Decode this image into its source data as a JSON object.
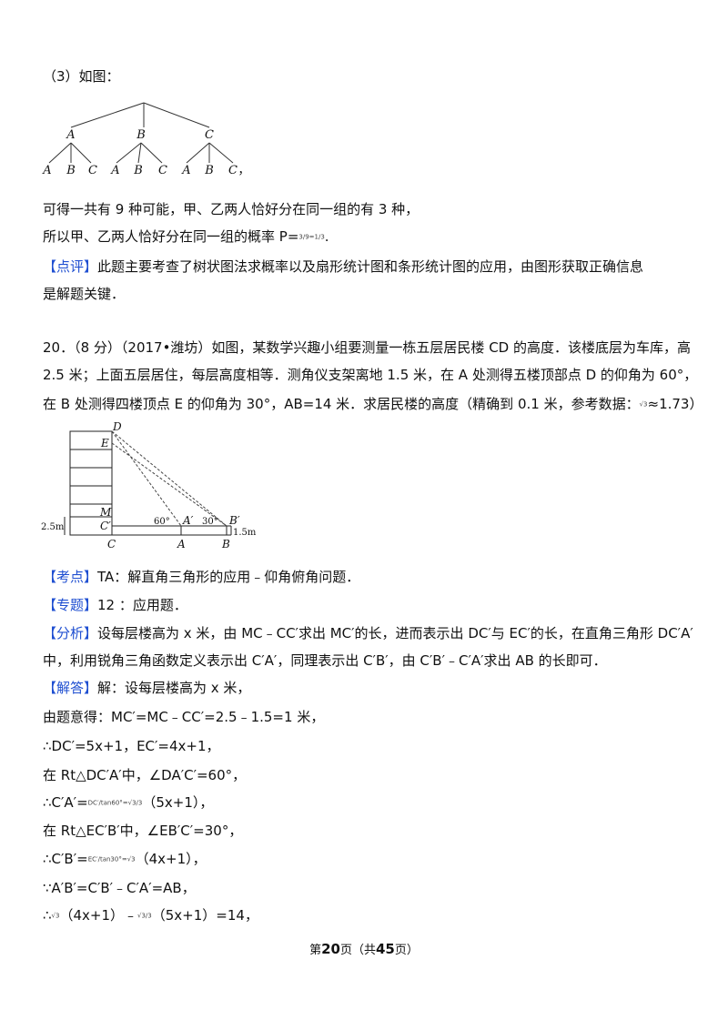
{
  "sec3": {
    "label": "（3）如图："
  },
  "tree": {
    "level1": [
      "A",
      "B",
      "C"
    ],
    "level2": [
      "A",
      "B",
      "C",
      "A",
      "B",
      "C",
      "A",
      "B",
      "C"
    ],
    "tail": "，"
  },
  "text": {
    "l1": "可得一共有 9 种可能，甲、乙两人恰好分在同一组的有 3 种，",
    "l2": "所以甲、乙两人恰好分在同一组的概率 P=",
    "l2_frac": "3/9=1/3",
    "l2_end": ".",
    "comment_tag": "【点评】",
    "comment_1": "此题主要考查了树状图法求概率以及扇形统计图和条形统计图的应用，由图形获取正确信息",
    "comment_2": "是解题关键．"
  },
  "problem": {
    "l1": "20．（8 分）（2017•潍坊）如图，某数学兴趣小组要测量一栋五层居民楼 CD 的高度．该楼底层为车库，高",
    "l2": "2.5 米；上面五层居住，每层高度相等．测角仪支架离地 1.5 米，在 A 处测得五楼顶部点 D 的仰角为 60°，",
    "l3_a": "在 B 处测得四楼顶点 E 的仰角为 30°，AB=14 米．求居民楼的高度（精确到 0.1 米，参考数据：",
    "l3_sqrt": "√3",
    "l3_b": "≈1.73）"
  },
  "figure": {
    "D": "D",
    "E": "E",
    "M": "M",
    "Cp": "C′",
    "C": "C",
    "A": "A",
    "B": "B",
    "Ap": "A′",
    "Bp": "B′",
    "h1": "2.5m",
    "h2": "1.5m",
    "ang60": "60°",
    "ang30": "30°"
  },
  "solution": {
    "kd_tag": "【考点】",
    "kd": "TA：解直角三角形的应用﹣仰角俯角问题．",
    "zt_tag": "【专题】",
    "zt": "12 ：应用题．",
    "fx_tag": "【分析】",
    "fx_1": "设每层楼高为 x 米，由 MC﹣CC′求出 MC′的长，进而表示出 DC′与 EC′的长，在直角三角形 DC′A′",
    "fx_2": "中，利用锐角三角函数定义表示出 C′A′，同理表示出 C′B′，由 C′B′﹣C′A′求出 AB 的长即可．",
    "jd_tag": "【解答】",
    "jd": "解：设每层楼高为 x 米，",
    "s1": "由题意得：MC′=MC﹣CC′=2.5﹣1.5=1 米，",
    "s2": "∴DC′=5x+1，EC′=4x+1，",
    "s3": "在 Rt△DC′A′中，∠DA′C′=60°，",
    "s4_a": "∴C′A′=",
    "s4_frac": "DC′/tan60°=√3/3",
    "s4_b": "（5x+1），",
    "s5": "在 Rt△EC′B′中，∠EB′C′=30°，",
    "s6_a": "∴C′B′=",
    "s6_frac": "EC′/tan30°=√3",
    "s6_b": "（4x+1），",
    "s7": "∵A′B′=C′B′﹣C′A′=AB，",
    "s8_a": "∴",
    "s8_f1": "√3",
    "s8_b": "（4x+1）﹣",
    "s8_f2": "√3/3",
    "s8_c": "（5x+1）=14，"
  },
  "footer": {
    "pre": "第",
    "page": "20",
    "mid": "页（共",
    "total": "45",
    "post": "页）"
  }
}
